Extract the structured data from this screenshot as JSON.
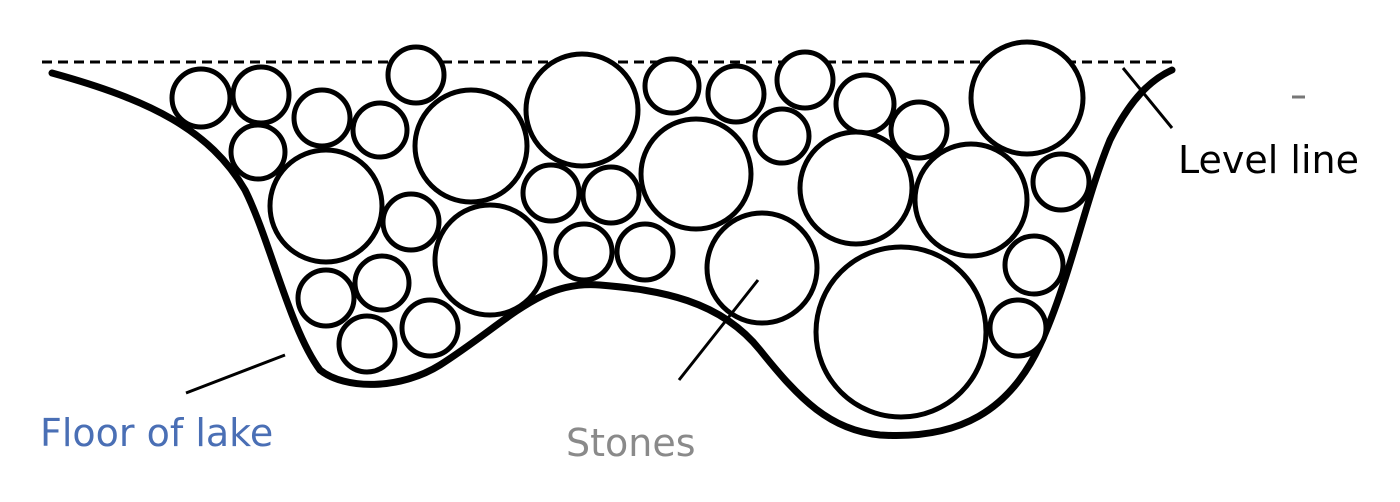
{
  "labels": {
    "level_line": "Level line",
    "floor_of_lake": "Floor of lake",
    "stones": "Stones"
  },
  "colors": {
    "line": "#000000",
    "level_line_label": "#000000",
    "floor_label": "#4a6fb5",
    "stones_label": "#8a8a8a"
  }
}
